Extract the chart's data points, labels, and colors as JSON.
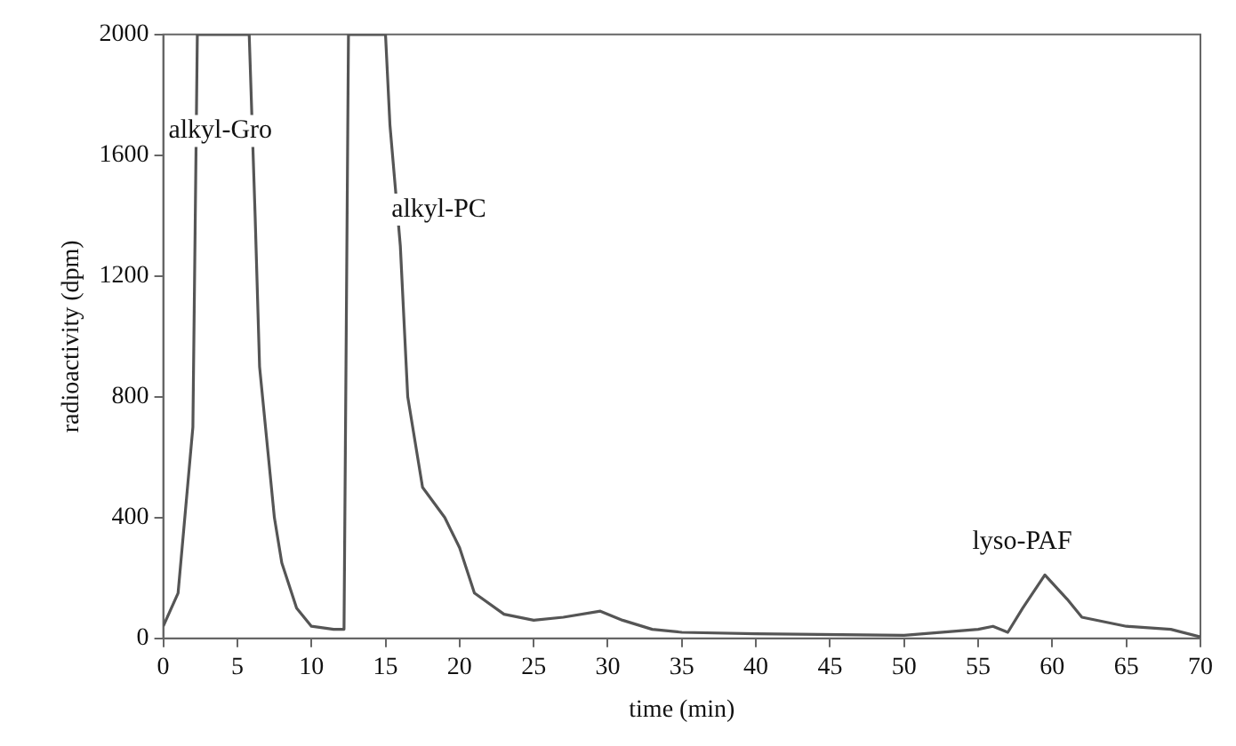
{
  "chart_data": {
    "type": "line",
    "xlabel": "time (min)",
    "ylabel": "radioactivity (dpm)",
    "x": [
      0,
      1,
      2,
      2.3,
      5.8,
      6.2,
      6.5,
      7.5,
      8,
      9,
      10,
      11.5,
      12.2,
      12.5,
      15,
      15.3,
      16,
      16.5,
      17.5,
      19,
      20,
      21,
      23,
      25,
      27,
      29.5,
      31,
      33,
      35,
      40,
      50,
      55,
      56,
      57,
      58,
      59.5,
      61,
      62,
      65,
      68,
      70
    ],
    "series": [
      {
        "color": "#555555",
        "values": [
          40,
          150,
          700,
          2000,
          2000,
          1400,
          900,
          400,
          250,
          100,
          40,
          30,
          30,
          2000,
          2000,
          1700,
          1300,
          800,
          500,
          400,
          300,
          150,
          80,
          60,
          70,
          90,
          60,
          30,
          20,
          15,
          10,
          30,
          40,
          20,
          100,
          210,
          130,
          70,
          40,
          30,
          5
        ]
      }
    ],
    "xlim": [
      0,
      70
    ],
    "xticks": [
      0,
      5,
      10,
      15,
      20,
      25,
      30,
      35,
      40,
      45,
      50,
      55,
      60,
      65,
      70
    ],
    "ylim": [
      0,
      2000
    ],
    "yticks": [
      0,
      400,
      800,
      1200,
      1600,
      2000
    ],
    "grid": false,
    "legend": false,
    "marker": "none",
    "line_style": "solid",
    "annotations": [
      "alkyl-Gro",
      "alkyl-PC",
      "lyso-PAF"
    ]
  }
}
